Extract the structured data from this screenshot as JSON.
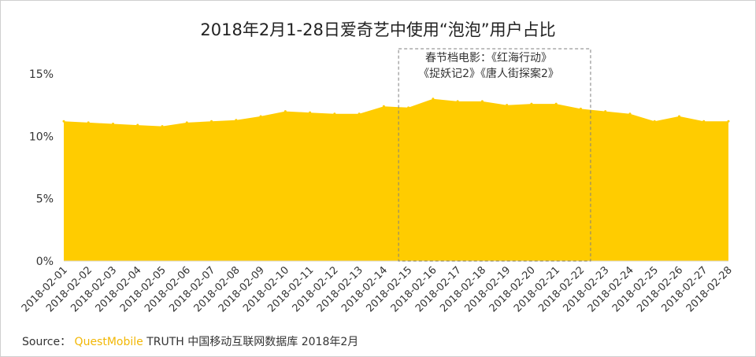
{
  "chart_data": {
    "type": "area",
    "title": "2018年2月1-28日爱奇艺中使用“泡泡”用户占比",
    "x": [
      "2018-02-01",
      "2018-02-02",
      "2018-02-03",
      "2018-02-04",
      "2018-02-05",
      "2018-02-06",
      "2018-02-07",
      "2018-02-08",
      "2018-02-09",
      "2018-02-10",
      "2018-02-11",
      "2018-02-12",
      "2018-02-13",
      "2018-02-14",
      "2018-02-15",
      "2018-02-16",
      "2018-02-17",
      "2018-02-18",
      "2018-02-19",
      "2018-02-20",
      "2018-02-21",
      "2018-02-22",
      "2018-02-23",
      "2018-02-24",
      "2018-02-25",
      "2018-02-26",
      "2018-02-27",
      "2018-02-28"
    ],
    "series": [
      {
        "values": [
          11.2,
          11.1,
          11.0,
          10.9,
          10.8,
          11.1,
          11.2,
          11.3,
          11.6,
          12.0,
          11.9,
          11.8,
          11.8,
          12.4,
          12.3,
          13.0,
          12.8,
          12.8,
          12.5,
          12.6,
          12.6,
          12.2,
          12.0,
          11.8,
          11.2,
          11.6,
          11.2,
          11.2
        ]
      }
    ],
    "y_ticks": [
      "0%",
      "5%",
      "10%",
      "15%"
    ],
    "ylim": [
      0,
      15
    ],
    "grid": false,
    "color": "#FFCC00",
    "annotation": {
      "x_range": [
        "2018-02-15",
        "2018-02-22"
      ],
      "lines": [
        "春节档电影：《红海行动》",
        "《捉妖记2》《唐人街探案2》"
      ]
    }
  },
  "source": {
    "prefix": "Source：",
    "brand": "QuestMobile",
    "text": " TRUTH 中国移动互联网数据库 2018年2月"
  }
}
